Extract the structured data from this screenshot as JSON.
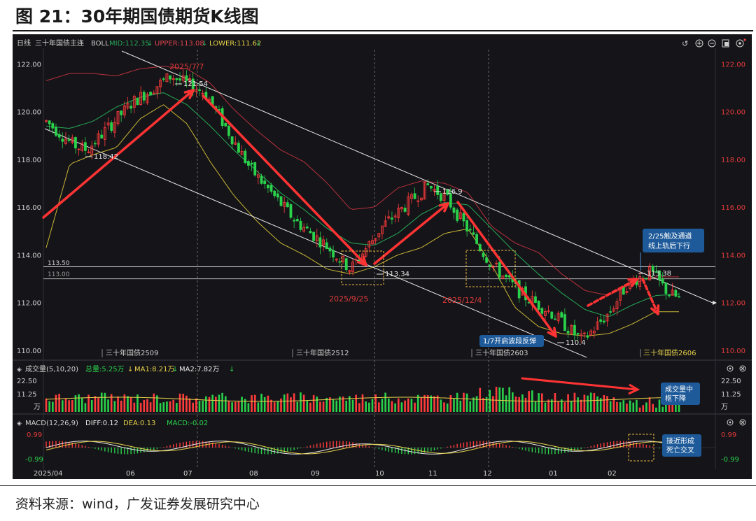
{
  "figure_title": "图 21：30年期国债期货K线图",
  "source_note": "资料来源：wind，广发证券发展研究中心",
  "header": {
    "period": "日线",
    "instrument": "三十年国债主连",
    "boll_name": "BOLL",
    "mid": "MID:112.35",
    "upper": "UPPER:113.08",
    "lower": "LOWER:111.62",
    "toolbar_icons": [
      "undo-icon",
      "zoom-in-icon",
      "zoom-out-icon",
      "copy-icon",
      "settings-icon"
    ]
  },
  "volume_header": {
    "name": "成交量(5,10,20)",
    "total": "总量:5.25万",
    "ma1": "MA1:8.21万",
    "ma2": "MA2:7.82万"
  },
  "macd_header": {
    "name": "MACD(12,26,9)",
    "diff": "DIFF:0.12",
    "dea": "DEA:0.13",
    "macd": "MACD:-0.02"
  },
  "colors": {
    "background": "#151519",
    "up": "#ff3b3b",
    "down": "#2ad14a",
    "mid_line": "#27a857",
    "upper_line": "#b8303c",
    "lower_line": "#c8b436",
    "channel": "#e6e6e6",
    "annotation": "#ff3333",
    "callout": "#1e5a99"
  },
  "chart_data": [
    {
      "type": "candlestick",
      "name": "三十年国债主连",
      "ylim": [
        110,
        122.6
      ],
      "yticks": [
        "122.00",
        "120.00",
        "118.00",
        "116.00",
        "114.00",
        "112.00",
        "110.00"
      ],
      "xticks": [
        "2025/04",
        "06",
        "07",
        "08",
        "09",
        "10",
        "11",
        "12",
        "01",
        "02"
      ],
      "series": [
        {
          "name": "MID",
          "values": [
            119.4,
            119.3,
            119.6,
            120.2,
            120.6,
            120.8,
            120.3,
            119.4,
            118.4,
            117.5,
            116.6,
            115.9,
            115.1,
            114.5,
            114.4,
            114.9,
            115.7,
            116.2,
            116.1,
            115.1,
            114.1,
            113.2,
            112.4,
            111.7,
            111.4,
            111.9,
            112.3,
            112.35
          ]
        },
        {
          "name": "UPPER",
          "values": [
            121.3,
            121.6,
            121.6,
            121.5,
            121.8,
            121.9,
            121.8,
            121.2,
            120.1,
            119.2,
            118.4,
            117.9,
            117.0,
            115.9,
            116.0,
            116.8,
            117.1,
            117.0,
            116.6,
            115.2,
            114.5,
            114.1,
            113.2,
            112.5,
            112.3,
            112.8,
            113.08,
            113.08
          ]
        },
        {
          "name": "LOWER",
          "values": [
            114.3,
            117.8,
            118.2,
            118.5,
            119.7,
            120.3,
            119.5,
            117.9,
            116.5,
            115.4,
            114.5,
            114.0,
            113.4,
            113.2,
            113.5,
            114.0,
            114.3,
            114.9,
            115.1,
            113.6,
            111.8,
            111.0,
            110.7,
            110.6,
            110.7,
            111.1,
            111.62,
            111.62
          ]
        }
      ],
      "hlines": [
        {
          "label": "113.50",
          "value": 113.5
        },
        {
          "label": "113.00",
          "value": 113.0
        }
      ],
      "price_labels": [
        {
          "text": "121.54",
          "value": 121.54
        },
        {
          "text": "118.42",
          "value": 118.42
        },
        {
          "text": "113.34",
          "value": 113.34
        },
        {
          "text": "116.9",
          "value": 116.9
        },
        {
          "text": "110.4",
          "value": 110.4
        },
        {
          "text": "113.38",
          "value": 113.38
        }
      ],
      "date_labels": [
        "2025/7/7",
        "2025/9/25",
        "2025/12/4"
      ],
      "contract_labels": [
        "三十年国债2509",
        "三十年国债2512",
        "三十年国债2603",
        "三十年国债2606"
      ],
      "callouts": [
        {
          "lines": [
            "2/25触及通道",
            "线上轨后下行"
          ]
        },
        {
          "lines": [
            "1/7开启波段反弹"
          ]
        }
      ]
    },
    {
      "type": "bar",
      "name": "成交量",
      "ylim": [
        0,
        25
      ],
      "yticks": [
        "22.50",
        "11.25",
        "万"
      ],
      "callouts": [
        {
          "lines": [
            "成交量中",
            "枢下降"
          ]
        }
      ]
    },
    {
      "type": "bar",
      "name": "MACD",
      "ylim": [
        -1.1,
        1.1
      ],
      "yticks": [
        "0.99",
        "-0.99"
      ],
      "callouts": [
        {
          "lines": [
            "接近形成",
            "死亡交叉"
          ]
        }
      ]
    }
  ]
}
